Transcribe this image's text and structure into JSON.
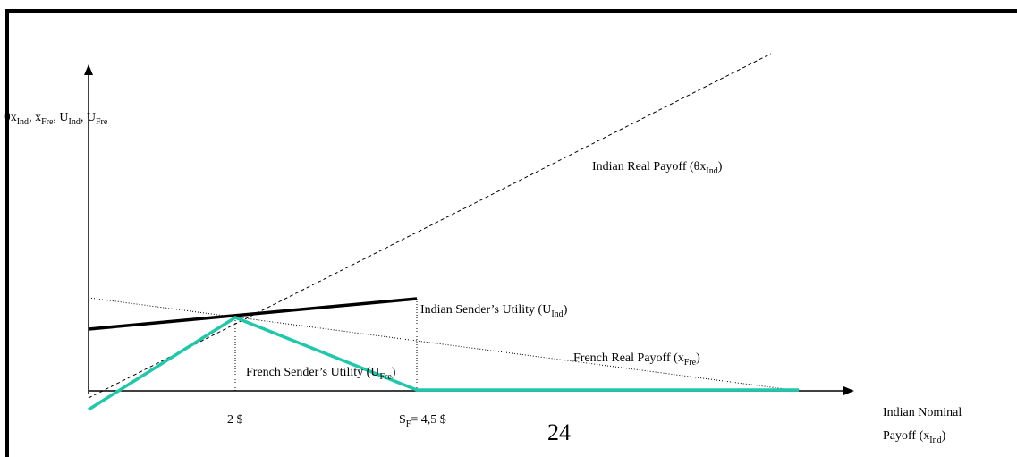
{
  "labels": {
    "y_axis": [
      "θx",
      "Ind",
      ", x",
      "Fre",
      ",  U",
      "Ind",
      ", U",
      "Fre"
    ],
    "indian_real": [
      "Indian Real Payoff (θx",
      "Ind",
      ")"
    ],
    "indian_utility": [
      "Indian Sender’s Utility (U",
      "Ind",
      ")"
    ],
    "french_real": [
      "French Real Payoff (x",
      "Fre",
      ")"
    ],
    "french_utility": [
      "French Sender’s   Utility (U",
      "Fre",
      ")"
    ],
    "tick_2": [
      "2 $"
    ],
    "tick_sf": [
      "S",
      "F",
      "= 4,5 $"
    ],
    "page_number": [
      "24"
    ],
    "x_axis_1": [
      "Indian Nominal"
    ],
    "x_axis_2": [
      "Payoff (x",
      "Ind",
      ")"
    ]
  }
}
